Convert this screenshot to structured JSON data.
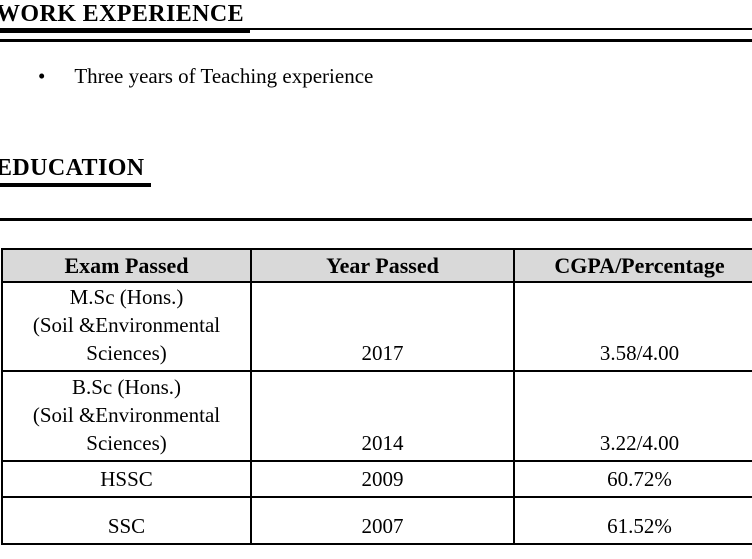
{
  "work_experience": {
    "heading": "WORK EXPERIENCE",
    "bullet_glyph": "•",
    "items": [
      "Three years of Teaching experience"
    ]
  },
  "education": {
    "heading": "EDUCATION",
    "table": {
      "header_bg": "#d9d9d9",
      "headers": [
        "Exam Passed",
        "Year Passed",
        "CGPA/Percentage"
      ],
      "rows": [
        {
          "exam": [
            "M.Sc (Hons.)",
            "(Soil &Environmental",
            "Sciences)"
          ],
          "year": "2017",
          "score": "3.58/4.00"
        },
        {
          "exam": [
            "B.Sc (Hons.)",
            "(Soil &Environmental",
            "Sciences)"
          ],
          "year": "2014",
          "score": "3.22/4.00"
        },
        {
          "exam": [
            "HSSC"
          ],
          "year": "2009",
          "score": "60.72%"
        },
        {
          "exam": [
            "SSC"
          ],
          "year": "2007",
          "score": "61.52%"
        }
      ]
    }
  }
}
